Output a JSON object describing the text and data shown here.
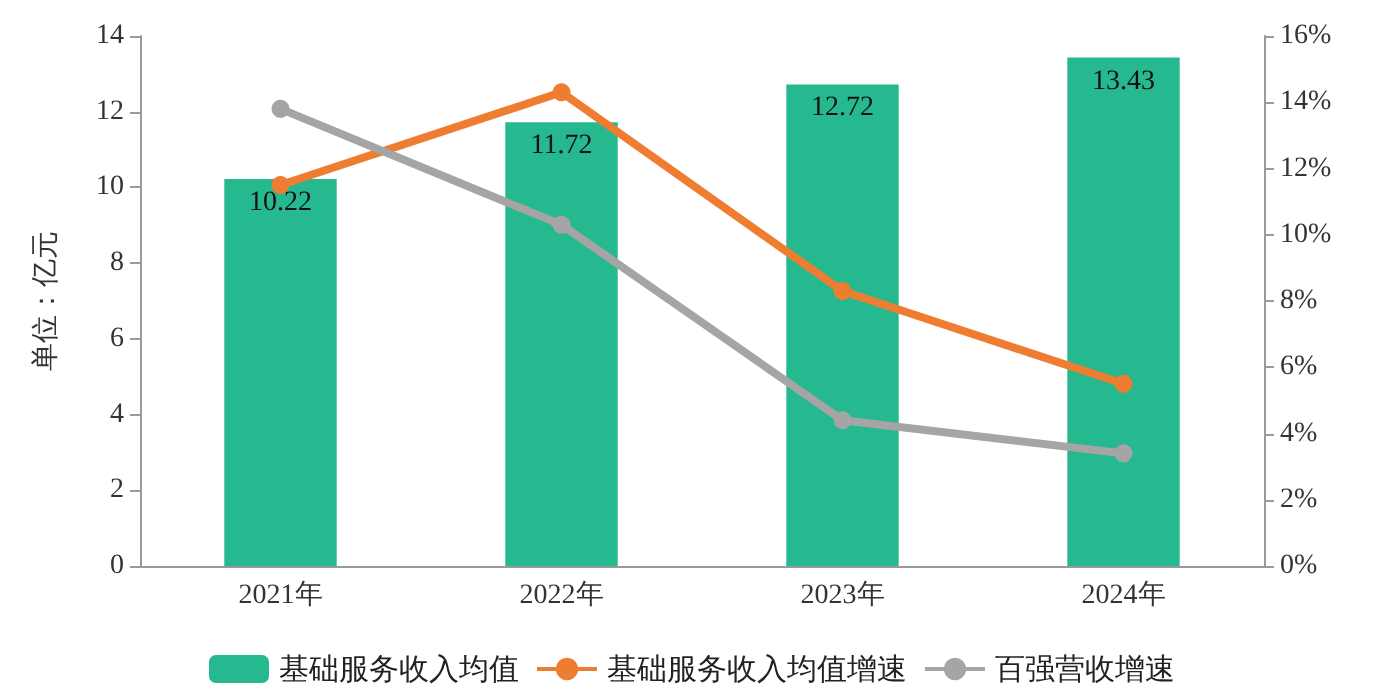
{
  "chart_data": {
    "type": "bar",
    "ylabel": "单位：亿元",
    "categories": [
      "2021年",
      "2022年",
      "2023年",
      "2024年"
    ],
    "series": [
      {
        "name": "基础服务收入均值",
        "color": "#26b88f",
        "values": [
          10.22,
          11.72,
          12.72,
          13.43
        ],
        "data_labels": true
      },
      {
        "name": "基础服务收入均值增速",
        "type": "line",
        "axis": "y2",
        "color": "#ee7d31",
        "values": [
          11.5,
          14.3,
          8.3,
          5.5
        ]
      },
      {
        "name": "百强营收增速",
        "type": "line",
        "axis": "y2",
        "color": "#a5a5a5",
        "values": [
          13.8,
          10.3,
          4.4,
          3.4
        ]
      }
    ],
    "ylim": [
      0,
      14
    ],
    "yticks": [
      0,
      2,
      4,
      6,
      8,
      10,
      12,
      14
    ],
    "y2lim": [
      0,
      16
    ],
    "y2ticks": [
      {
        "value": 0,
        "label": "0%"
      },
      {
        "value": 2,
        "label": "2%"
      },
      {
        "value": 4,
        "label": "4%"
      },
      {
        "value": 6,
        "label": "6%"
      },
      {
        "value": 8,
        "label": "8%"
      },
      {
        "value": 10,
        "label": "10%"
      },
      {
        "value": 12,
        "label": "12%"
      },
      {
        "value": 14,
        "label": "14%"
      },
      {
        "value": 16,
        "label": "16%"
      }
    ],
    "grid": false,
    "legend": "bottom",
    "marker": "circle"
  }
}
